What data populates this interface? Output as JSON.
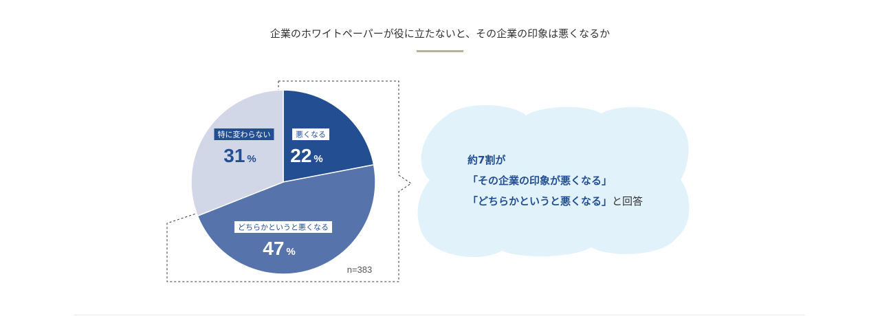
{
  "title": "企業のホワイトペーパーが役に立たないと、その企業の印象は悪くなるか",
  "colors": {
    "worse": "#234f92",
    "somewhat_worse": "#5674ab",
    "no_change": "#d1d7e7",
    "bubble": "#e1f2fb",
    "accent_text": "#234f92",
    "underline": "#b7b296"
  },
  "chart_data": {
    "type": "pie",
    "title": "企業のホワイトペーパーが役に立たないと、その企業の印象は悪くなるか",
    "slices": [
      {
        "label": "悪くなる",
        "value": 22,
        "display": "22",
        "unit": "%"
      },
      {
        "label": "どちらかというと悪くなる",
        "value": 47,
        "display": "47",
        "unit": "%"
      },
      {
        "label": "特に変わらない",
        "value": 31,
        "display": "31",
        "unit": "%"
      }
    ],
    "note": "n=383"
  },
  "callout": {
    "lines": [
      "約7割が",
      "「その企業の印象が悪くなる」",
      "「どちらかというと悪くなる」と回答"
    ]
  }
}
